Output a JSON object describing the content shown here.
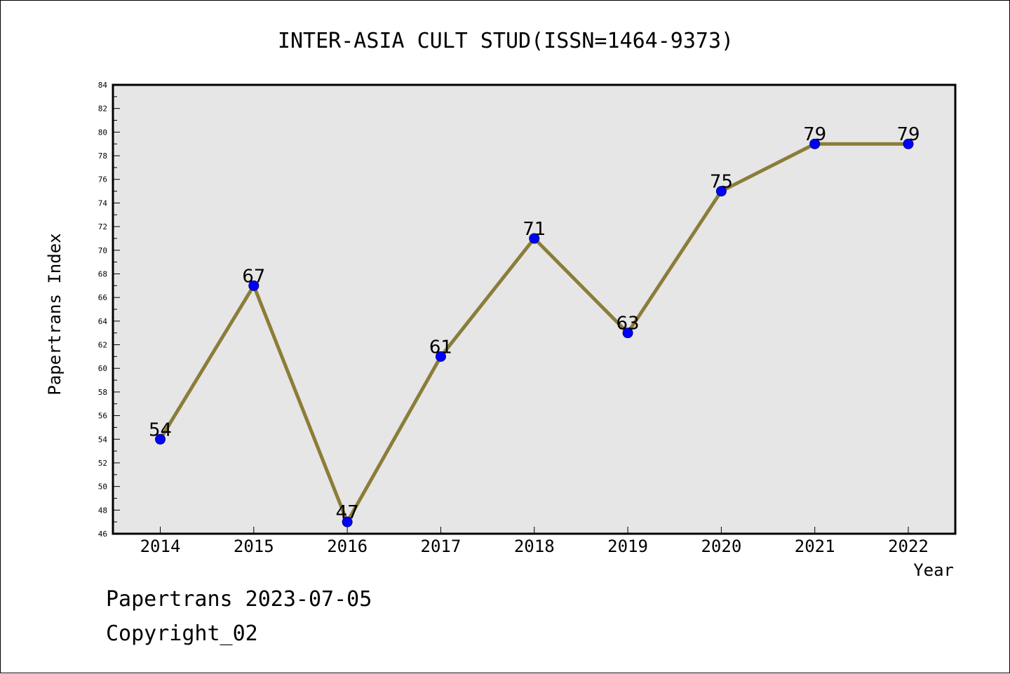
{
  "footer": {
    "date_text": "Papertrans 2023-07-05",
    "copyright_text": "Copyright_02"
  },
  "chart_data": {
    "type": "line",
    "title": "INTER-ASIA CULT STUD(ISSN=1464-9373)",
    "xlabel": "Year",
    "ylabel": "Papertrans Index",
    "x": [
      2014,
      2015,
      2016,
      2017,
      2018,
      2019,
      2020,
      2021,
      2022
    ],
    "values": [
      54,
      67,
      47,
      61,
      71,
      63,
      75,
      79,
      79
    ],
    "ylim": [
      46,
      84
    ],
    "y_ticks": [
      46,
      48,
      50,
      52,
      54,
      56,
      58,
      60,
      62,
      64,
      66,
      68,
      70,
      72,
      74,
      76,
      78,
      80,
      82,
      84
    ],
    "data_labels": true,
    "grid": false,
    "colors": {
      "line": "#8B7D3A",
      "marker": "#0000FF",
      "marker_edge": "#000080",
      "plot_background": "#E6E6E6"
    }
  }
}
